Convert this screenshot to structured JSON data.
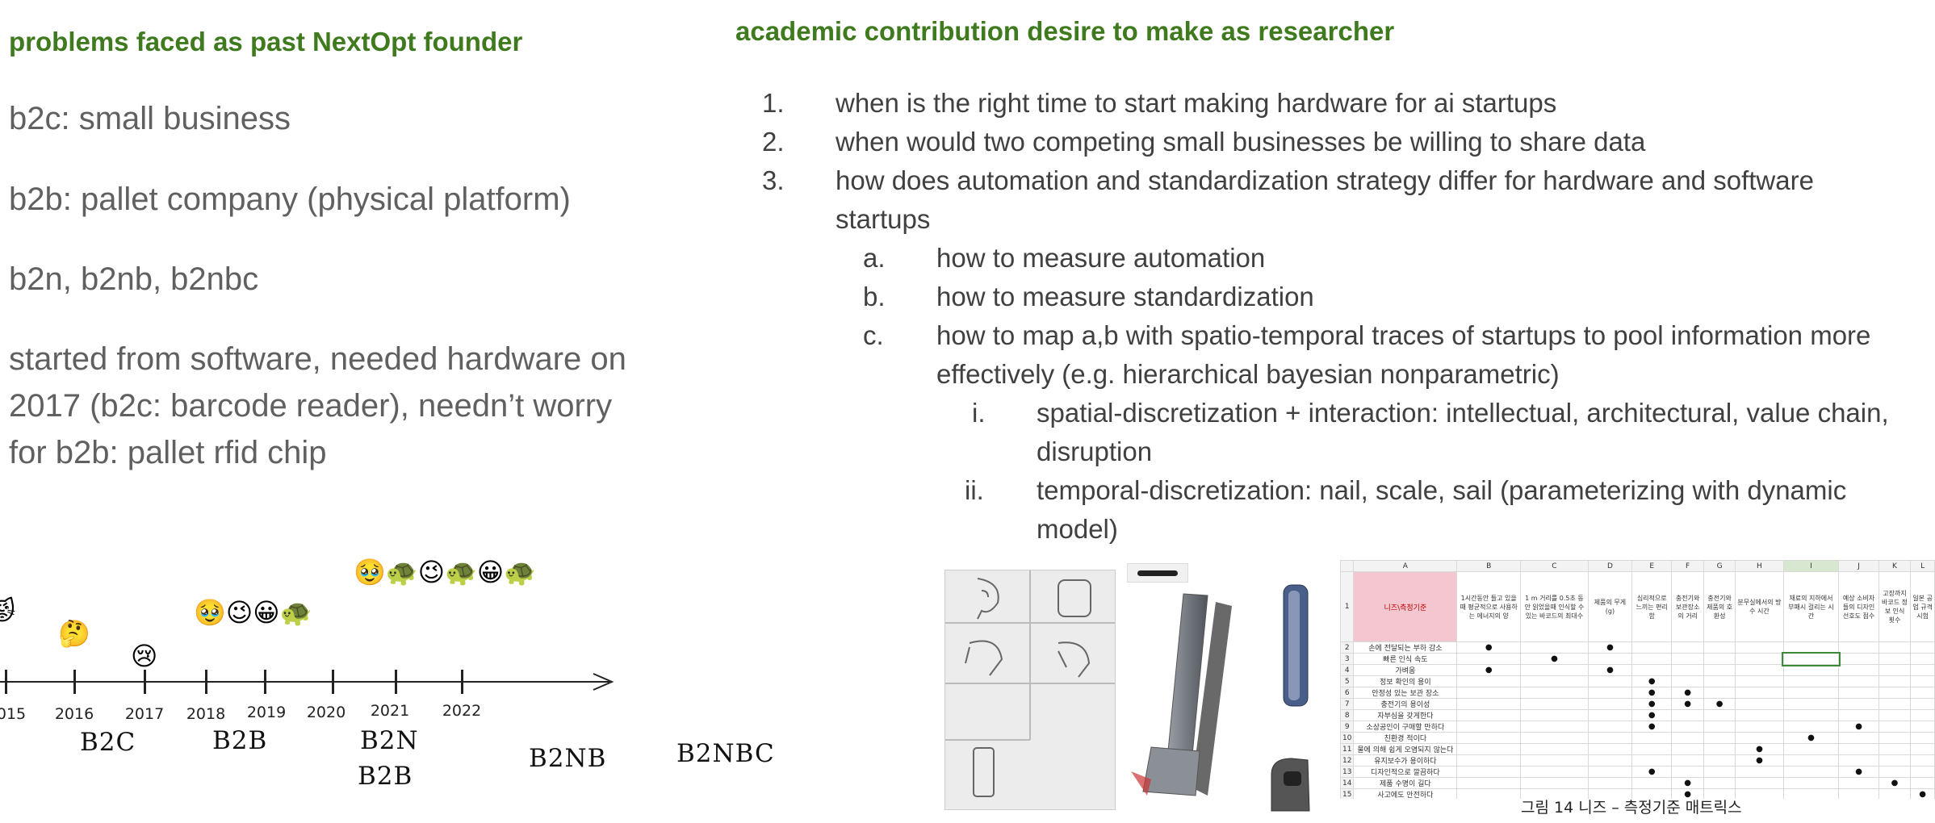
{
  "left": {
    "heading": "problems faced as past NextOpt founder",
    "items": [
      "b2c: small business",
      "b2b: pallet company (physical platform)",
      "b2n, b2nb, b2nbc"
    ],
    "paragraph": [
      "started from software, needed hardware on",
      "2017 (b2c:  barcode reader), needn’t worry",
      "for b2b: pallet rfid chip"
    ]
  },
  "right": {
    "heading": "academic contribution desire to make as researcher",
    "list": [
      {
        "marker": "1.",
        "lines": [
          "when is the right time to start making hardware for ai startups"
        ]
      },
      {
        "marker": "2.",
        "lines": [
          "when would two competing small businesses be willing to share data"
        ]
      },
      {
        "marker": "3.",
        "lines": [
          "how does automation and standardization strategy differ for hardware and software",
          "startups"
        ]
      },
      {
        "marker": "a.",
        "lines": [
          "how to measure automation"
        ]
      },
      {
        "marker": "b.",
        "lines": [
          "how to measure standardization"
        ]
      },
      {
        "marker": "c.",
        "lines": [
          "how to map a,b with spatio-temporal traces of startups to pool information more",
          "effectively (e.g. hierarchical bayesian nonparametric)"
        ]
      },
      {
        "marker": "i.",
        "lines": [
          "spatial-discretization + interaction: intellectual, architectural, value chain,",
          "disruption"
        ]
      },
      {
        "marker": "ii.",
        "lines": [
          "temporal-discretization: nail, scale, sail (parameterizing with dynamic",
          "model)"
        ]
      }
    ]
  },
  "timeline": {
    "years": [
      "015",
      "2016",
      "2017",
      "2018",
      "2019",
      "2020",
      "2021",
      "2022"
    ],
    "emojis": {
      "e2015": "😾",
      "e2016": "🤔",
      "e2017": "😢",
      "e2018_19": "🥹😉😀🐢",
      "e2021_22": "🥹🐢😉🐢😀🐢"
    },
    "labels": {
      "b2c": "B2C",
      "b2b": "B2B",
      "b2n": "B2N",
      "b2b2": "B2B",
      "b2nb": "B2NB",
      "b2nbc": "B2NBC"
    }
  },
  "figure": {
    "caption": "그림 14 니즈 – 측정기준 매트릭스",
    "sheet_cols": [
      "A",
      "B",
      "C",
      "D",
      "E",
      "F",
      "G",
      "H",
      "I",
      "J",
      "K",
      "L"
    ],
    "sheet_header": "니즈\\측정기준",
    "sheet_col_headers": [
      "1시간동안 들고 있을때 평균적으로 사용하는 에너지의 양",
      "1 m 거리를 0.5초 동안 읽었을때 인식할 수 있는 바코드의 최대수",
      "제품의 무게(g)",
      "심리적으로 느끼는 편리함",
      "충전기와 보관장소의 거리",
      "충전기와 제품의 호환성",
      "분무실에서의 방수 시간",
      "재료의 지하에서 부패시 걸리는 시간",
      "예상 소비자들의 디자인 선호도 점수",
      "고장까지 바코드 정보 인식 횟수",
      "일본 공업 규격 시험"
    ],
    "sheet_rows": [
      "손에 전달되는 부하 감소",
      "빠른 인식 속도",
      "가벼움",
      "정보 확인의 용이",
      "안정성 있는 보관 장소",
      "충전기의 용이성",
      "자부심을 갖게한다",
      "소상공인이 구매할 만하다",
      "친환경 적이다",
      "물에 의해 쉽게 오염되지 않는다",
      "유지보수가 용이하다",
      "디자인적으로 깔끔하다",
      "제품 수명이 길다",
      "사고에도 안전하다"
    ],
    "sheet_dots": [
      [
        0,
        1
      ],
      [
        0,
        3
      ],
      [
        1,
        2
      ],
      [
        2,
        1
      ],
      [
        2,
        3
      ],
      [
        3,
        4
      ],
      [
        4,
        4
      ],
      [
        4,
        5
      ],
      [
        5,
        4
      ],
      [
        5,
        5
      ],
      [
        5,
        6
      ],
      [
        6,
        4
      ],
      [
        7,
        4
      ],
      [
        7,
        9
      ],
      [
        8,
        8
      ],
      [
        9,
        7
      ],
      [
        10,
        7
      ],
      [
        11,
        4
      ],
      [
        11,
        9
      ],
      [
        12,
        5
      ],
      [
        12,
        10
      ],
      [
        13,
        5
      ],
      [
        13,
        11
      ]
    ],
    "colors": {
      "header_pink": "#f4c7d0",
      "heading_green": "#3f7a1e"
    }
  }
}
